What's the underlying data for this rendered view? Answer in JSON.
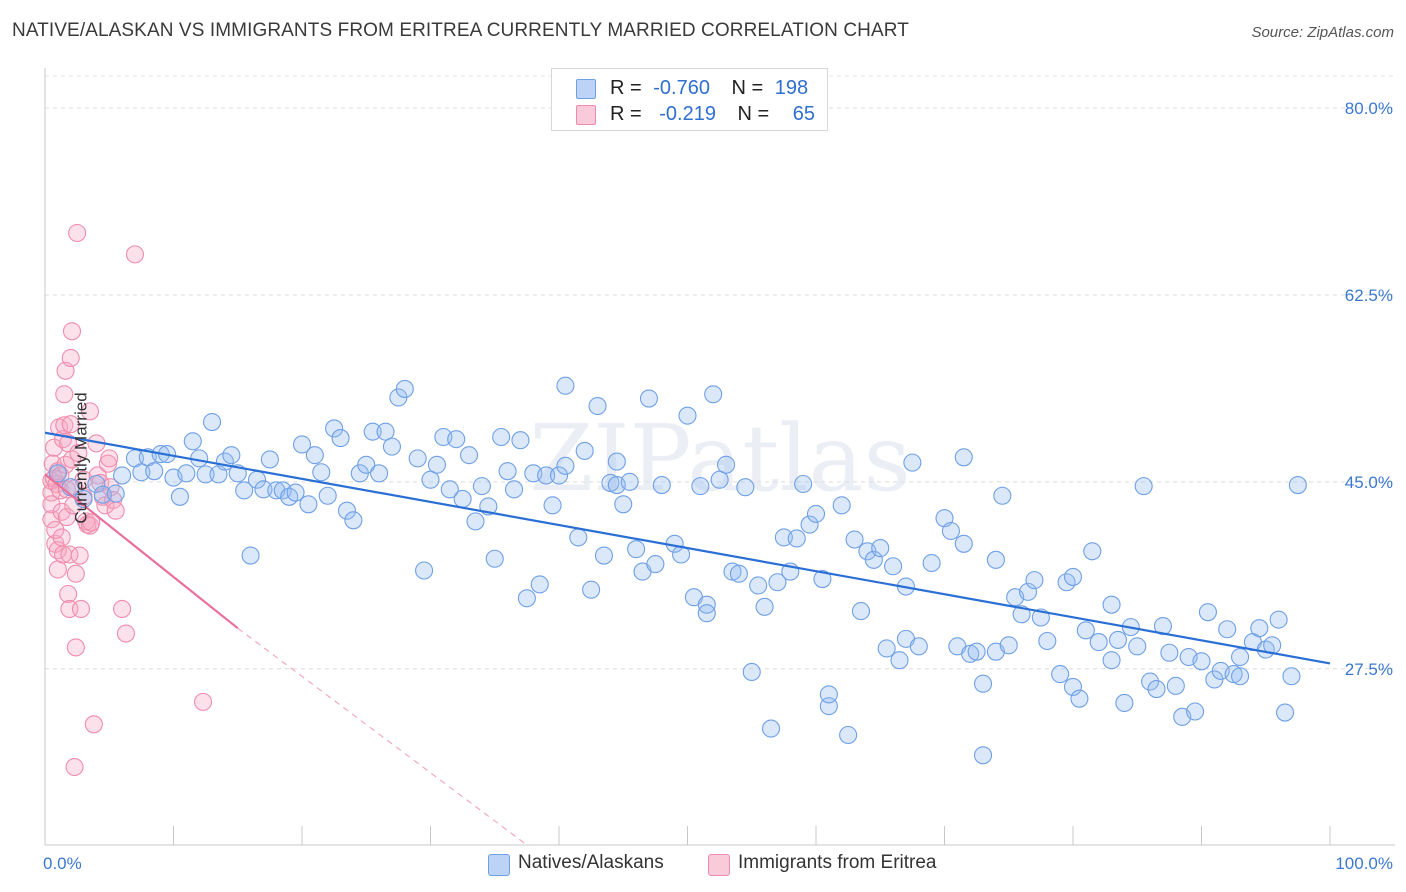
{
  "title": "NATIVE/ALASKAN VS IMMIGRANTS FROM ERITREA CURRENTLY MARRIED CORRELATION CHART",
  "source": "Source: ZipAtlas.com",
  "watermark": "ZIPatlas",
  "legend": {
    "rows": [
      {
        "r_label": "R =",
        "r_value": "-0.760",
        "n_label": "N =",
        "n_value": "198",
        "color": "#a9c7f0"
      },
      {
        "r_label": "R =",
        "r_value": "-0.219",
        "n_label": "N =",
        "n_value": "65",
        "color": "#f5b8cb"
      }
    ]
  },
  "bottom_legend": [
    "Natives/Alaskans",
    "Immigrants from Eritrea"
  ],
  "chart_data": {
    "type": "scatter",
    "xlabel": "",
    "ylabel": "Currently Married",
    "xlim": [
      0,
      100
    ],
    "ylim": [
      11.0,
      83.0
    ],
    "x_tick_labels": [
      "0.0%",
      "100.0%"
    ],
    "y_ticks": [
      27.5,
      45.0,
      62.5,
      80.0
    ],
    "y_tick_labels": [
      "27.5%",
      "45.0%",
      "62.5%",
      "80.0%"
    ],
    "grid": "horizontal dashed",
    "legend_position": "top-center",
    "colors": {
      "natives": "#6fa0e6",
      "natives_fill": "rgba(150,188,240,0.35)",
      "natives_line": "#2a6fd6",
      "eritrea": "#f08cab",
      "eritrea_fill": "rgba(245,170,195,0.35)",
      "eritrea_line": "#e8709a",
      "axis_text": "#3b78d0"
    },
    "series": [
      {
        "name": "Natives/Alaskans",
        "trend": {
          "x": [
            0,
            100
          ],
          "y": [
            49.6,
            28.0
          ]
        },
        "points": [
          [
            1,
            45.8
          ],
          [
            2,
            44.5
          ],
          [
            3,
            43.4
          ],
          [
            4,
            44.8
          ],
          [
            4.5,
            43.8
          ],
          [
            5.5,
            43.9
          ],
          [
            6,
            45.6
          ],
          [
            7,
            47.2
          ],
          [
            7.5,
            45.9
          ],
          [
            8,
            47.3
          ],
          [
            8.5,
            46.0
          ],
          [
            9,
            47.6
          ],
          [
            9.5,
            47.6
          ],
          [
            10,
            45.4
          ],
          [
            10.5,
            43.6
          ],
          [
            11,
            45.8
          ],
          [
            11.5,
            48.8
          ],
          [
            12,
            47.2
          ],
          [
            12.5,
            45.7
          ],
          [
            13,
            50.6
          ],
          [
            13.5,
            45.7
          ],
          [
            14,
            46.9
          ],
          [
            14.5,
            47.5
          ],
          [
            15,
            45.8
          ],
          [
            15.5,
            44.2
          ],
          [
            16,
            38.1
          ],
          [
            16.5,
            45.2
          ],
          [
            17,
            44.3
          ],
          [
            17.5,
            47.1
          ],
          [
            18,
            44.2
          ],
          [
            18.5,
            44.2
          ],
          [
            19,
            43.6
          ],
          [
            19.5,
            44.0
          ],
          [
            20,
            48.5
          ],
          [
            20.5,
            42.9
          ],
          [
            21,
            47.5
          ],
          [
            21.5,
            45.9
          ],
          [
            22,
            43.7
          ],
          [
            22.5,
            50.0
          ],
          [
            23,
            49.1
          ],
          [
            23.5,
            42.3
          ],
          [
            24,
            41.4
          ],
          [
            24.5,
            45.8
          ],
          [
            25,
            46.6
          ],
          [
            25.5,
            49.7
          ],
          [
            26,
            45.8
          ],
          [
            26.5,
            49.7
          ],
          [
            27,
            48.3
          ],
          [
            27.5,
            52.9
          ],
          [
            28,
            53.7
          ],
          [
            29,
            47.2
          ],
          [
            29.5,
            36.7
          ],
          [
            30,
            45.2
          ],
          [
            30.5,
            46.6
          ],
          [
            31,
            49.2
          ],
          [
            31.5,
            44.3
          ],
          [
            32,
            49.0
          ],
          [
            32.5,
            43.4
          ],
          [
            33,
            47.5
          ],
          [
            33.5,
            41.3
          ],
          [
            34,
            44.6
          ],
          [
            34.5,
            42.7
          ],
          [
            35,
            37.8
          ],
          [
            35.5,
            49.2
          ],
          [
            36,
            46.0
          ],
          [
            36.5,
            44.3
          ],
          [
            37,
            48.9
          ],
          [
            37.5,
            34.1
          ],
          [
            38,
            45.8
          ],
          [
            38.5,
            35.4
          ],
          [
            39,
            45.6
          ],
          [
            39.5,
            42.8
          ],
          [
            40,
            45.6
          ],
          [
            40.5,
            46.5
          ],
          [
            40.5,
            54.0
          ],
          [
            41.5,
            39.8
          ],
          [
            42,
            47.9
          ],
          [
            42.5,
            34.9
          ],
          [
            43,
            52.1
          ],
          [
            43.5,
            38.1
          ],
          [
            44,
            44.9
          ],
          [
            44.5,
            46.9
          ],
          [
            44.5,
            44.7
          ],
          [
            45,
            42.9
          ],
          [
            45.5,
            45.0
          ],
          [
            46,
            38.7
          ],
          [
            46.5,
            36.6
          ],
          [
            47,
            52.8
          ],
          [
            47.5,
            37.3
          ],
          [
            48,
            44.7
          ],
          [
            49,
            39.2
          ],
          [
            49.5,
            38.2
          ],
          [
            50,
            51.2
          ],
          [
            50.5,
            34.2
          ],
          [
            51,
            44.6
          ],
          [
            51.5,
            33.5
          ],
          [
            51.5,
            32.7
          ],
          [
            52,
            53.2
          ],
          [
            52.5,
            45.2
          ],
          [
            53,
            46.6
          ],
          [
            53.5,
            36.6
          ],
          [
            54,
            36.4
          ],
          [
            54.5,
            44.5
          ],
          [
            55,
            27.2
          ],
          [
            55.5,
            35.3
          ],
          [
            56,
            33.3
          ],
          [
            56.5,
            21.9
          ],
          [
            57,
            35.6
          ],
          [
            57.5,
            39.8
          ],
          [
            58,
            36.6
          ],
          [
            58.5,
            39.7
          ],
          [
            59,
            44.8
          ],
          [
            59.5,
            41.0
          ],
          [
            60,
            42.0
          ],
          [
            60.5,
            35.9
          ],
          [
            61,
            24.0
          ],
          [
            61,
            25.1
          ],
          [
            62,
            42.8
          ],
          [
            62.5,
            21.3
          ],
          [
            63,
            39.6
          ],
          [
            63.5,
            32.9
          ],
          [
            64,
            38.5
          ],
          [
            64.5,
            37.7
          ],
          [
            65,
            38.8
          ],
          [
            65.5,
            29.4
          ],
          [
            66,
            37.1
          ],
          [
            66.5,
            28.3
          ],
          [
            67,
            30.3
          ],
          [
            67,
            35.2
          ],
          [
            67.5,
            46.8
          ],
          [
            68,
            29.6
          ],
          [
            69,
            37.4
          ],
          [
            70,
            41.6
          ],
          [
            70.5,
            40.4
          ],
          [
            71,
            29.6
          ],
          [
            71.5,
            47.3
          ],
          [
            71.5,
            39.2
          ],
          [
            72,
            28.9
          ],
          [
            72.5,
            29.1
          ],
          [
            73,
            19.4
          ],
          [
            73,
            26.1
          ],
          [
            74,
            37.7
          ],
          [
            74,
            29.1
          ],
          [
            74.5,
            43.7
          ],
          [
            75,
            29.7
          ],
          [
            75.5,
            34.2
          ],
          [
            76,
            32.6
          ],
          [
            76.5,
            34.7
          ],
          [
            77,
            35.8
          ],
          [
            77.5,
            32.3
          ],
          [
            78,
            30.1
          ],
          [
            79,
            27.0
          ],
          [
            79.5,
            35.6
          ],
          [
            80,
            25.8
          ],
          [
            80.5,
            24.7
          ],
          [
            80,
            36.1
          ],
          [
            81,
            31.1
          ],
          [
            81.5,
            38.5
          ],
          [
            82,
            30.0
          ],
          [
            83,
            28.3
          ],
          [
            83,
            33.5
          ],
          [
            83.5,
            30.2
          ],
          [
            84,
            24.3
          ],
          [
            84.5,
            31.4
          ],
          [
            85,
            29.6
          ],
          [
            85.5,
            44.6
          ],
          [
            86,
            26.3
          ],
          [
            86.5,
            25.6
          ],
          [
            87,
            31.5
          ],
          [
            87.5,
            29.0
          ],
          [
            88,
            25.9
          ],
          [
            88.5,
            23.0
          ],
          [
            89,
            28.6
          ],
          [
            89.5,
            23.5
          ],
          [
            90,
            28.2
          ],
          [
            90.5,
            32.8
          ],
          [
            91,
            26.5
          ],
          [
            91.5,
            27.3
          ],
          [
            92,
            31.2
          ],
          [
            92.5,
            27.0
          ],
          [
            93,
            26.8
          ],
          [
            93,
            28.6
          ],
          [
            94,
            30.0
          ],
          [
            94.5,
            31.3
          ],
          [
            95,
            29.3
          ],
          [
            95.5,
            29.7
          ],
          [
            96,
            32.1
          ],
          [
            96.5,
            23.4
          ],
          [
            97,
            26.8
          ],
          [
            97.5,
            44.7
          ]
        ]
      },
      {
        "name": "Immigrants from Eritrea",
        "trend": {
          "x": [
            0,
            15
          ],
          "y": [
            45.7,
            31.3
          ]
        },
        "trend_dashed": {
          "x": [
            15,
            37.5
          ],
          "y": [
            31.3,
            11.0
          ]
        },
        "points": [
          [
            0.5,
            45.1
          ],
          [
            0.5,
            44.0
          ],
          [
            0.5,
            42.9
          ],
          [
            0.5,
            41.5
          ],
          [
            0.6,
            46.7
          ],
          [
            0.7,
            45.3
          ],
          [
            0.7,
            48.2
          ],
          [
            0.8,
            39.2
          ],
          [
            0.8,
            40.5
          ],
          [
            0.9,
            44.8
          ],
          [
            1.0,
            46.0
          ],
          [
            1.0,
            38.6
          ],
          [
            1.0,
            36.8
          ],
          [
            1.1,
            50.1
          ],
          [
            1.2,
            45.6
          ],
          [
            1.2,
            44.2
          ],
          [
            1.3,
            42.2
          ],
          [
            1.3,
            39.8
          ],
          [
            1.4,
            49.0
          ],
          [
            1.4,
            38.2
          ],
          [
            1.5,
            50.3
          ],
          [
            1.5,
            53.2
          ],
          [
            1.6,
            55.4
          ],
          [
            1.6,
            46.6
          ],
          [
            1.7,
            44.3
          ],
          [
            1.7,
            41.7
          ],
          [
            1.8,
            48.6
          ],
          [
            1.8,
            34.5
          ],
          [
            1.9,
            33.1
          ],
          [
            1.9,
            38.2
          ],
          [
            2.0,
            50.4
          ],
          [
            2.0,
            56.6
          ],
          [
            2.1,
            59.1
          ],
          [
            2.1,
            47.1
          ],
          [
            2.2,
            42.8
          ],
          [
            2.3,
            44.4
          ],
          [
            2.4,
            36.4
          ],
          [
            2.4,
            29.5
          ],
          [
            2.3,
            18.3
          ],
          [
            2.5,
            68.3
          ],
          [
            2.6,
            47.7
          ],
          [
            2.7,
            38.1
          ],
          [
            2.8,
            33.1
          ],
          [
            3.0,
            45.2
          ],
          [
            3.0,
            43.6
          ],
          [
            3.2,
            41.3
          ],
          [
            3.3,
            41.0
          ],
          [
            3.5,
            40.9
          ],
          [
            3.6,
            41.2
          ],
          [
            3.8,
            22.3
          ],
          [
            3.5,
            51.6
          ],
          [
            4.0,
            48.6
          ],
          [
            4.1,
            45.6
          ],
          [
            4.3,
            44.9
          ],
          [
            4.5,
            43.6
          ],
          [
            4.7,
            42.8
          ],
          [
            4.9,
            46.7
          ],
          [
            5.1,
            44.5
          ],
          [
            5.3,
            43.3
          ],
          [
            5.5,
            42.3
          ],
          [
            5.0,
            47.2
          ],
          [
            6.0,
            33.1
          ],
          [
            6.3,
            30.8
          ],
          [
            7.0,
            66.3
          ],
          [
            12.3,
            24.4
          ]
        ]
      }
    ]
  }
}
